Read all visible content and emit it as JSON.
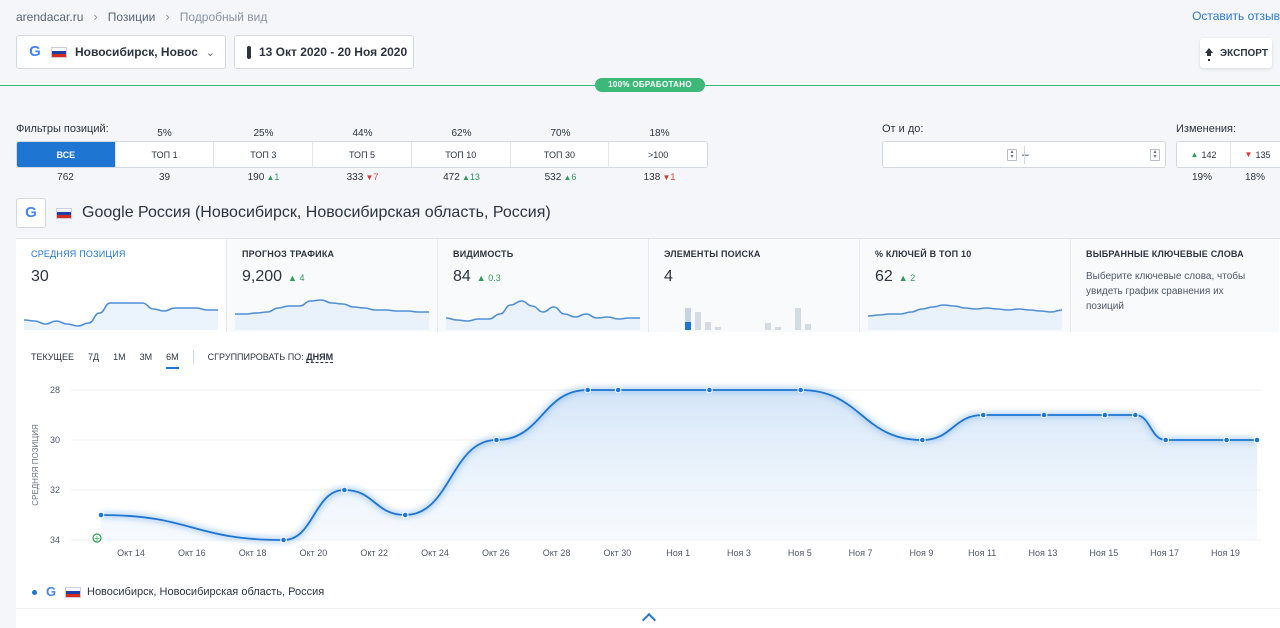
{
  "breadcrumb": {
    "site": "arendacar.ru",
    "positions": "Позиции",
    "current": "Подробный вид"
  },
  "feedback": "Оставить отзыв",
  "engine": {
    "label": "Новосибирск, Новос..."
  },
  "date_range": "13 Окт 2020 - 20 Ноя 2020",
  "export_label": "ЭКСПОРТ",
  "progress": {
    "label": "100% ОБРАБОТАНО",
    "value": 100
  },
  "filters": {
    "title": "Фильтры позиций:",
    "segments": [
      {
        "label": "ВСЕ",
        "pct": "",
        "count": "762",
        "delta": "",
        "dir": ""
      },
      {
        "label": "ТОП 1",
        "pct": "5%",
        "count": "39",
        "delta": "",
        "dir": ""
      },
      {
        "label": "ТОП 3",
        "pct": "25%",
        "count": "190",
        "delta": "1",
        "dir": "up"
      },
      {
        "label": "ТОП 5",
        "pct": "44%",
        "count": "333",
        "delta": "7",
        "dir": "down"
      },
      {
        "label": "ТОП 10",
        "pct": "62%",
        "count": "472",
        "delta": "13",
        "dir": "up"
      },
      {
        "label": "ТОП 30",
        "pct": "70%",
        "count": "532",
        "delta": "6",
        "dir": "up"
      },
      {
        "label": ">100",
        "pct": "18%",
        "count": "138",
        "delta": "1",
        "dir": "down"
      }
    ]
  },
  "range": {
    "title": "От и до:",
    "dash": "–"
  },
  "changes": {
    "title": "Изменения:",
    "up": "142",
    "down": "135",
    "up_pct": "19%",
    "down_pct": "18%"
  },
  "engine_header": "Google Россия (Новосибирск, Новосибирская область, Россия)",
  "metrics": [
    {
      "title": "СРЕДНЯЯ ПОЗИЦИЯ",
      "value": "30",
      "delta": "",
      "spark": [
        8,
        7,
        4,
        7,
        4,
        2,
        5,
        15,
        25,
        25,
        25,
        25,
        19,
        17,
        20,
        20,
        20,
        18,
        18
      ]
    },
    {
      "title": "ПРОГНОЗ ТРАФИКА",
      "value": "9,200",
      "delta": "4",
      "spark": [
        14,
        14,
        15,
        16,
        20,
        22,
        22,
        27,
        28,
        25,
        24,
        21,
        20,
        18,
        18,
        17,
        17,
        16,
        16
      ]
    },
    {
      "title": "ВИДИМОСТЬ",
      "value": "84",
      "delta": "0.3",
      "spark": [
        10,
        8,
        7,
        9,
        9,
        14,
        23,
        27,
        22,
        16,
        21,
        14,
        11,
        14,
        10,
        11,
        9,
        10,
        10
      ]
    },
    {
      "title": "ЭЛЕМЕНТЫ ПОИСКА",
      "value": "4",
      "delta": "",
      "bars": [
        0,
        22,
        18,
        8,
        3,
        0,
        0,
        0,
        0,
        7,
        3,
        0,
        22,
        6,
        0
      ]
    },
    {
      "title": "% КЛЮЧЕЙ В ТОП 10",
      "value": "62",
      "delta": "2",
      "spark": [
        12,
        13,
        14,
        14,
        16,
        19,
        21,
        23,
        22,
        20,
        19,
        20,
        19,
        18,
        19,
        18,
        17,
        16,
        18
      ]
    },
    {
      "title": "ВЫБРАННЫЕ КЛЮЧЕВЫЕ СЛОВА",
      "description": "Выберите ключевые слова, чтобы увидеть график сравнения их позиций"
    }
  ],
  "periods": {
    "items": [
      "ТЕКУЩЕЕ",
      "7Д",
      "1М",
      "3М",
      "6М"
    ],
    "active": "6М",
    "group_label": "СГРУППИРОВАТЬ ПО:",
    "group_value": "ДНЯМ"
  },
  "chart_data": {
    "type": "area",
    "ylabel": "СРЕДНЯЯ ПОЗИЦИЯ",
    "y_reversed": true,
    "ylim": [
      28,
      34
    ],
    "yticks": [
      28,
      30,
      32,
      34
    ],
    "xlabels": [
      "Окт 14",
      "Окт 16",
      "Окт 18",
      "Окт 20",
      "Окт 22",
      "Окт 24",
      "Окт 26",
      "Окт 28",
      "Окт 30",
      "Ноя 1",
      "Ноя 3",
      "Ноя 5",
      "Ноя 7",
      "Ноя 9",
      "Ноя 11",
      "Ноя 13",
      "Ноя 15",
      "Ноя 17",
      "Ноя 19"
    ],
    "points": [
      {
        "date": "2020-10-13",
        "value": 33
      },
      {
        "date": "2020-10-19",
        "value": 34
      },
      {
        "date": "2020-10-21",
        "value": 32
      },
      {
        "date": "2020-10-23",
        "value": 33
      },
      {
        "date": "2020-10-26",
        "value": 30
      },
      {
        "date": "2020-10-29",
        "value": 28
      },
      {
        "date": "2020-10-30",
        "value": 28
      },
      {
        "date": "2020-11-02",
        "value": 28
      },
      {
        "date": "2020-11-05",
        "value": 28
      },
      {
        "date": "2020-11-09",
        "value": 30
      },
      {
        "date": "2020-11-11",
        "value": 29
      },
      {
        "date": "2020-11-13",
        "value": 29
      },
      {
        "date": "2020-11-15",
        "value": 29
      },
      {
        "date": "2020-11-16",
        "value": 29
      },
      {
        "date": "2020-11-17",
        "value": 30
      },
      {
        "date": "2020-11-19",
        "value": 30
      },
      {
        "date": "2020-11-20",
        "value": 30
      }
    ],
    "legend": "Новосибирск, Новосибирская область, Россия",
    "color": "#1e75d2"
  }
}
